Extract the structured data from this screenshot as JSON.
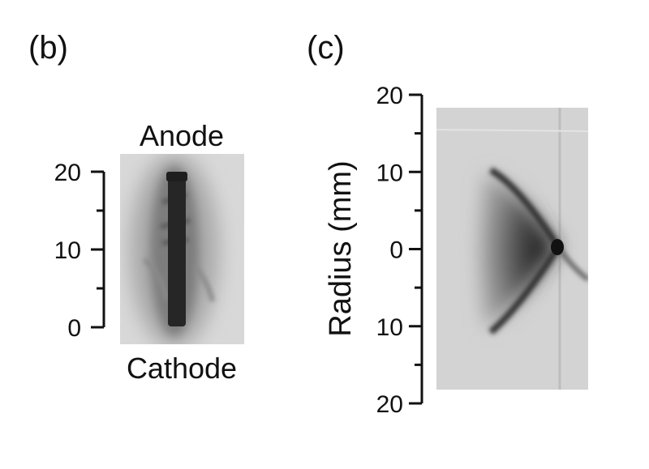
{
  "panel_b": {
    "label": "(b)",
    "top_label": "Anode",
    "bottom_label": "Cathode",
    "ticks": [
      {
        "value": 20,
        "text": "20"
      },
      {
        "value": 10,
        "text": "10"
      },
      {
        "value": 0,
        "text": "0"
      }
    ],
    "axis_range": [
      0,
      20
    ]
  },
  "panel_c": {
    "label": "(c)",
    "ylabel": "Radius (mm)",
    "ticks": [
      {
        "value": 20,
        "text": "20"
      },
      {
        "value": 10,
        "text": "10"
      },
      {
        "value": 0,
        "text": "0"
      },
      {
        "value": -10,
        "text": "10"
      },
      {
        "value": -20,
        "text": "20"
      }
    ],
    "axis_range": [
      -20,
      20
    ]
  }
}
